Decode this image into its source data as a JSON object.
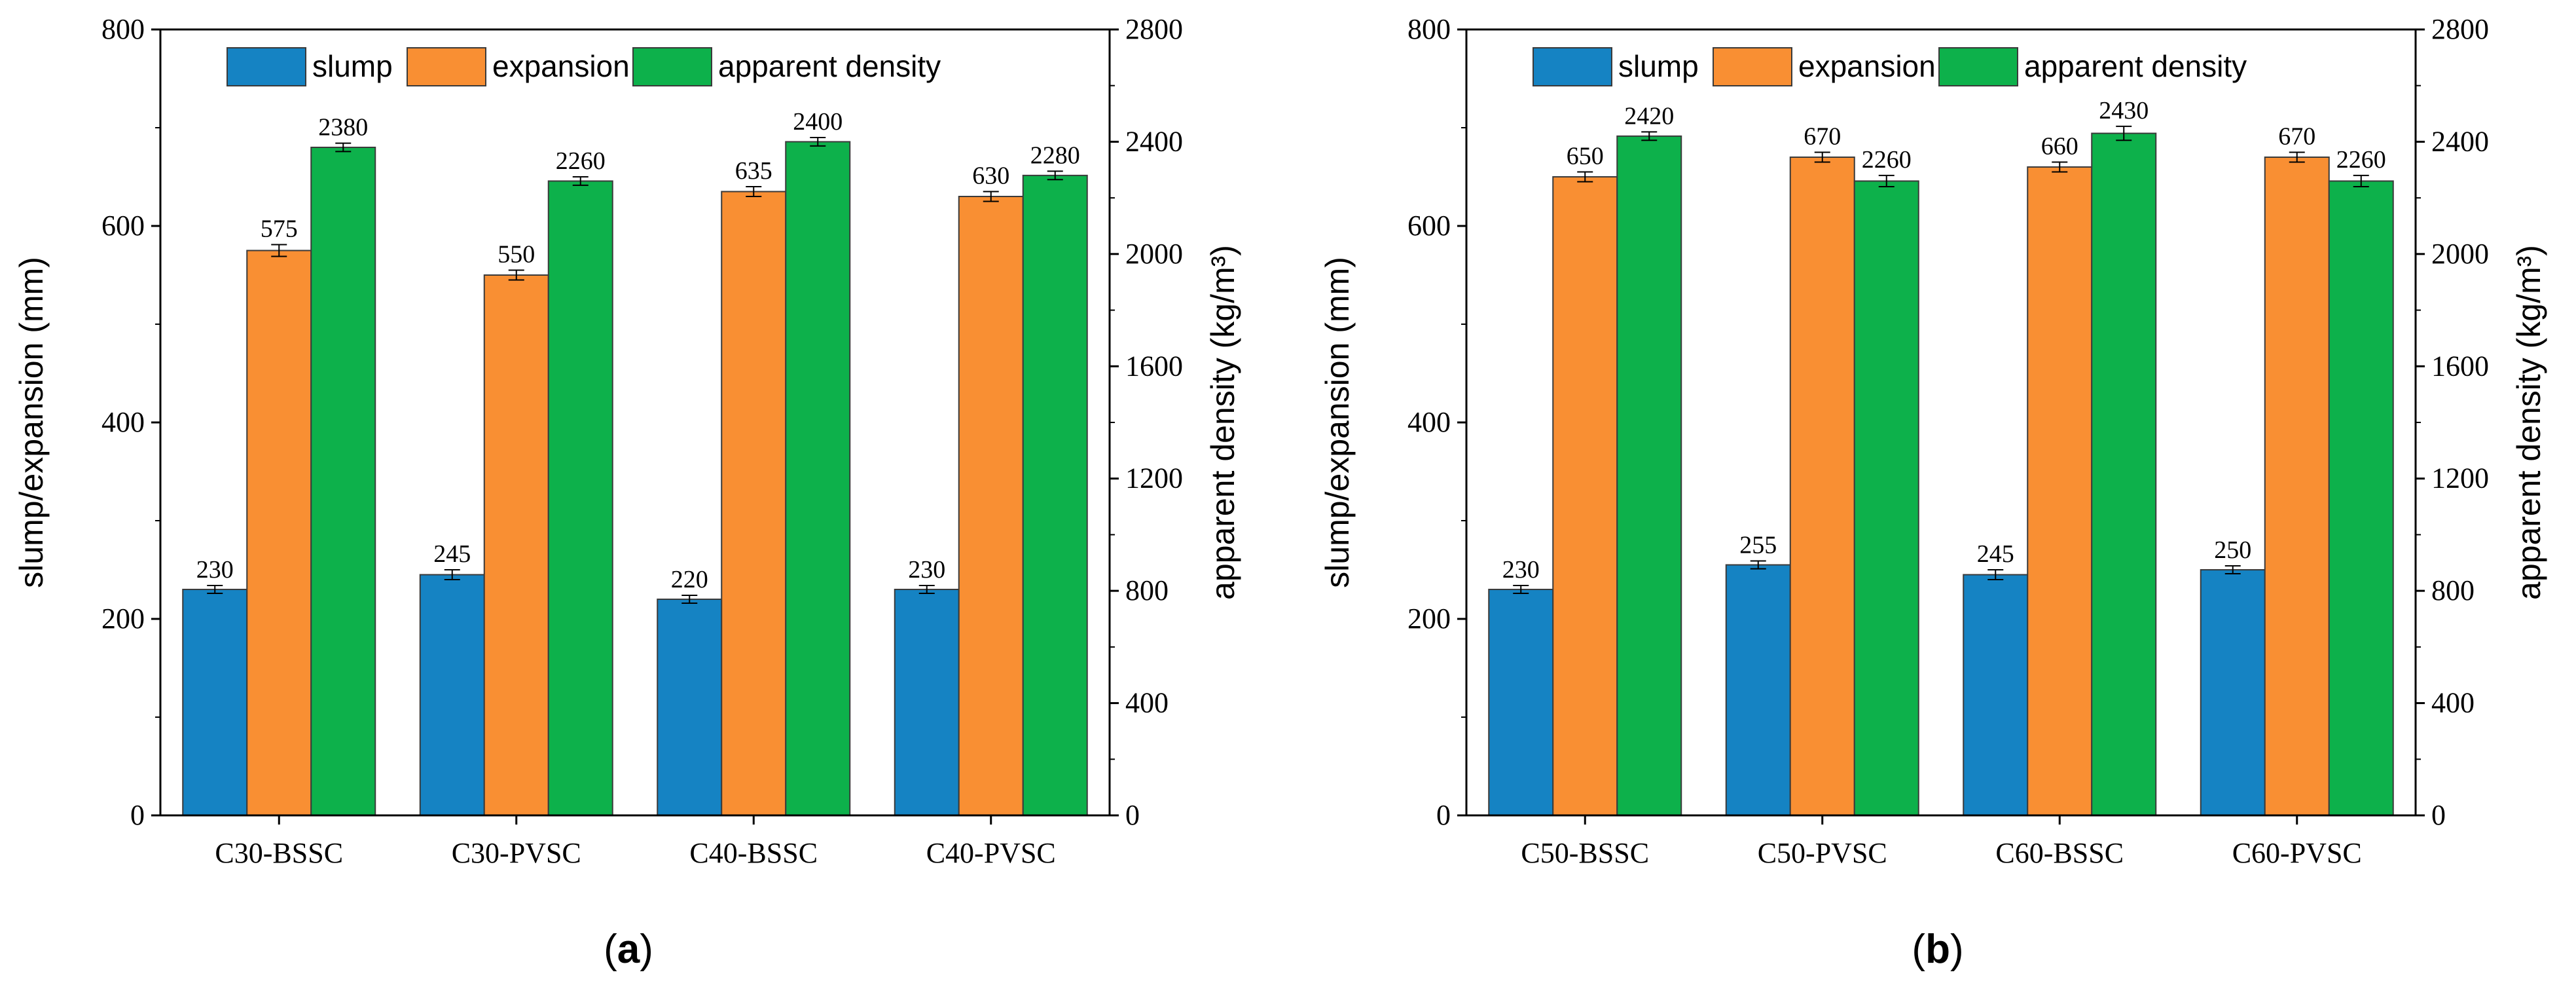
{
  "chart_data": [
    {
      "type": "bar",
      "panel_label": "a",
      "categories": [
        "C30-BSSC",
        "C30-PVSC",
        "C40-BSSC",
        "C40-PVSC"
      ],
      "series": [
        {
          "name": "slump",
          "axis": "left",
          "color": "#1583c3",
          "values": [
            230,
            245,
            220,
            230
          ],
          "labels": [
            "230",
            "245",
            "220",
            "230"
          ],
          "error": [
            4,
            5,
            4,
            4
          ]
        },
        {
          "name": "expansion",
          "axis": "left",
          "color": "#f98f33",
          "values": [
            575,
            550,
            635,
            630
          ],
          "labels": [
            "575",
            "550",
            "635",
            "630"
          ],
          "error": [
            6,
            5,
            5,
            5
          ]
        },
        {
          "name": "apparent density",
          "axis": "right",
          "color": "#0db14b",
          "values": [
            2380,
            2260,
            2400,
            2280
          ],
          "labels": [
            "2380",
            "2260",
            "2400",
            "2280"
          ],
          "error": [
            15,
            15,
            15,
            15
          ]
        }
      ],
      "ylabel_left": "slump/expansion (mm)",
      "ylabel_right": "apparent density (kg/m³)",
      "ylim_left": [
        0,
        800
      ],
      "yticks_left": [
        "0",
        "200",
        "400",
        "600",
        "800"
      ],
      "ylim_right": [
        0,
        2800
      ],
      "yticks_right": [
        "0",
        "400",
        "800",
        "1200",
        "1600",
        "2000",
        "2400",
        "2800"
      ],
      "legend_position": "top-center",
      "grid": false
    },
    {
      "type": "bar",
      "panel_label": "b",
      "categories": [
        "C50-BSSC",
        "C50-PVSC",
        "C60-BSSC",
        "C60-PVSC"
      ],
      "series": [
        {
          "name": "slump",
          "axis": "left",
          "color": "#1583c3",
          "values": [
            230,
            255,
            245,
            250
          ],
          "labels": [
            "230",
            "255",
            "245",
            "250"
          ],
          "error": [
            4,
            4,
            5,
            4
          ]
        },
        {
          "name": "expansion",
          "axis": "left",
          "color": "#f98f33",
          "values": [
            650,
            670,
            660,
            670
          ],
          "labels": [
            "650",
            "670",
            "660",
            "670"
          ],
          "error": [
            5,
            5,
            5,
            5
          ]
        },
        {
          "name": "apparent density",
          "axis": "right",
          "color": "#0db14b",
          "values": [
            2420,
            2260,
            2430,
            2260
          ],
          "labels": [
            "2420",
            "2260",
            "2430",
            "2260"
          ],
          "error": [
            15,
            20,
            25,
            20
          ]
        }
      ],
      "ylabel_left": "slump/expansion (mm)",
      "ylabel_right": "apparent density (kg/m³)",
      "ylim_left": [
        0,
        800
      ],
      "yticks_left": [
        "0",
        "200",
        "400",
        "600",
        "800"
      ],
      "ylim_right": [
        0,
        2800
      ],
      "yticks_right": [
        "0",
        "400",
        "800",
        "1200",
        "1600",
        "2000",
        "2400",
        "2800"
      ],
      "legend_position": "top-center",
      "grid": false
    }
  ]
}
